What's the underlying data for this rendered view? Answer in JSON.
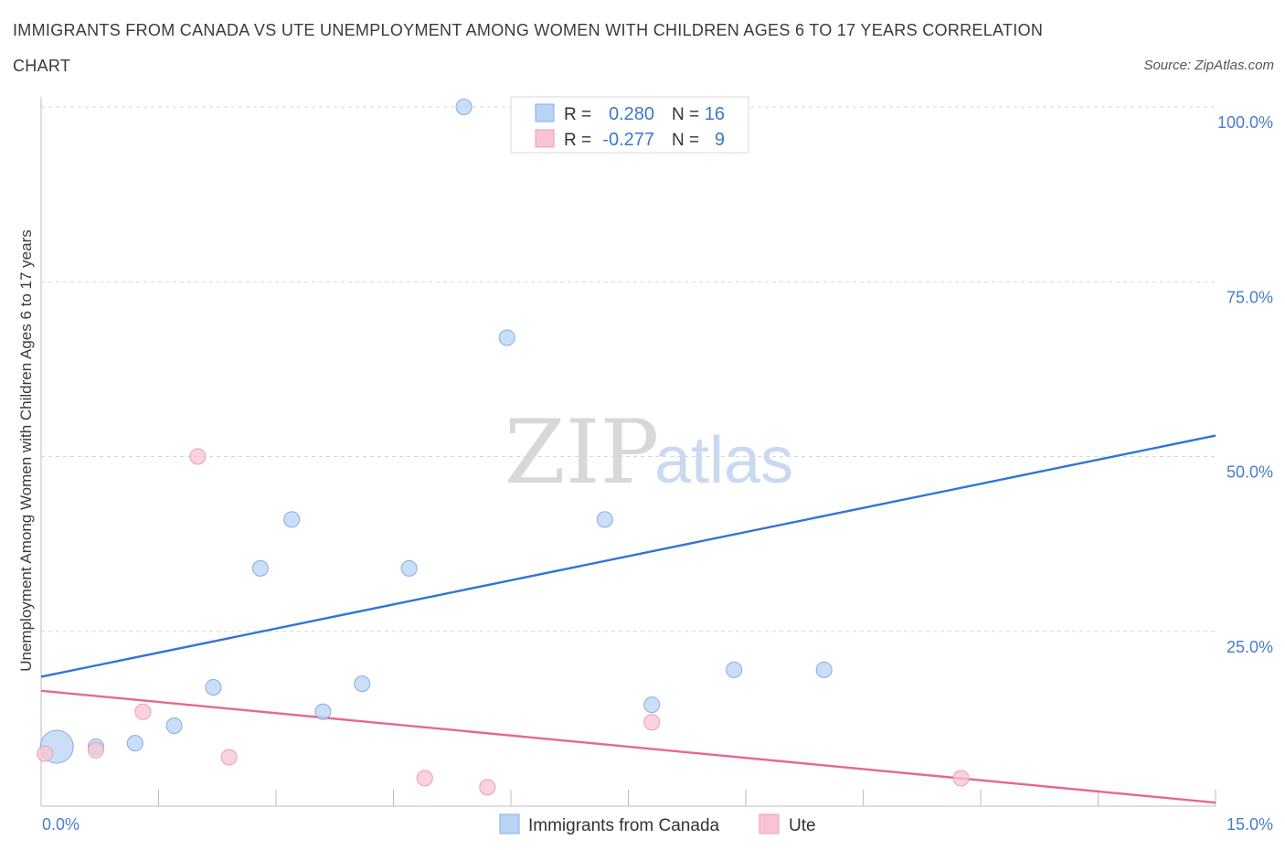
{
  "title_line1": "IMMIGRANTS FROM CANADA VS UTE UNEMPLOYMENT AMONG WOMEN WITH CHILDREN AGES 6 TO 17 YEARS CORRELATION",
  "title_line2": "CHART",
  "source": "Source: ZipAtlas.com",
  "watermark": {
    "zip": "ZIP",
    "atlas": "atlas"
  },
  "colors": {
    "blue_fill": "#b9d3f5",
    "blue_stroke": "#86ace4",
    "blue_line": "#3274d4",
    "pink_fill": "#f8c4d4",
    "pink_stroke": "#ec9db6",
    "pink_line": "#e8678f",
    "tick_text": "#4a7cc9",
    "grid": "#d6d6d6"
  },
  "legend": {
    "rows": [
      {
        "r_label": "R =",
        "r_value": "0.280",
        "n_label": "N =",
        "n_value": "16"
      },
      {
        "r_label": "R =",
        "r_value": "-0.277",
        "n_label": "N =",
        "n_value": "9"
      }
    ]
  },
  "chart_data": {
    "type": "scatter",
    "title": "IMMIGRANTS FROM CANADA VS UTE UNEMPLOYMENT AMONG WOMEN WITH CHILDREN AGES 6 TO 17 YEARS CORRELATION CHART",
    "xlabel": "",
    "ylabel": "Unemployment Among Women with Children Ages 6 to 17 years",
    "xlim": [
      0,
      15
    ],
    "ylim": [
      0,
      100
    ],
    "x_tick_labels": [
      "0.0%",
      "15.0%"
    ],
    "y_tick_labels": [
      "25.0%",
      "50.0%",
      "75.0%",
      "100.0%"
    ],
    "y_ticks": [
      25,
      50,
      75,
      100
    ],
    "grid": "horizontal dashed",
    "legend_position": "top-center and bottom",
    "series": [
      {
        "name": "Immigrants from Canada",
        "color": "#b9d3f5",
        "points": [
          {
            "x": 0.2,
            "y": 8.5,
            "size": "large"
          },
          {
            "x": 0.7,
            "y": 8.5
          },
          {
            "x": 1.2,
            "y": 9.0
          },
          {
            "x": 1.7,
            "y": 11.5
          },
          {
            "x": 2.2,
            "y": 17.0
          },
          {
            "x": 2.8,
            "y": 34.0
          },
          {
            "x": 3.2,
            "y": 41.0
          },
          {
            "x": 3.6,
            "y": 13.5
          },
          {
            "x": 4.1,
            "y": 17.5
          },
          {
            "x": 4.7,
            "y": 34.0
          },
          {
            "x": 5.4,
            "y": 100.0
          },
          {
            "x": 5.95,
            "y": 67.0
          },
          {
            "x": 7.2,
            "y": 41.0
          },
          {
            "x": 7.8,
            "y": 14.5
          },
          {
            "x": 8.85,
            "y": 19.5
          },
          {
            "x": 10.0,
            "y": 19.5
          }
        ],
        "trend": {
          "x": [
            0,
            15
          ],
          "y": [
            18.5,
            53.0
          ]
        }
      },
      {
        "name": "Ute",
        "color": "#f8c4d4",
        "points": [
          {
            "x": 0.05,
            "y": 7.5
          },
          {
            "x": 0.7,
            "y": 8.0
          },
          {
            "x": 1.3,
            "y": 13.5
          },
          {
            "x": 2.0,
            "y": 50.0
          },
          {
            "x": 2.4,
            "y": 7.0
          },
          {
            "x": 4.9,
            "y": 4.0
          },
          {
            "x": 5.7,
            "y": 2.7
          },
          {
            "x": 7.8,
            "y": 12.0
          },
          {
            "x": 11.75,
            "y": 4.0
          }
        ],
        "trend": {
          "x": [
            0,
            15
          ],
          "y": [
            16.5,
            0.5
          ]
        }
      }
    ]
  }
}
